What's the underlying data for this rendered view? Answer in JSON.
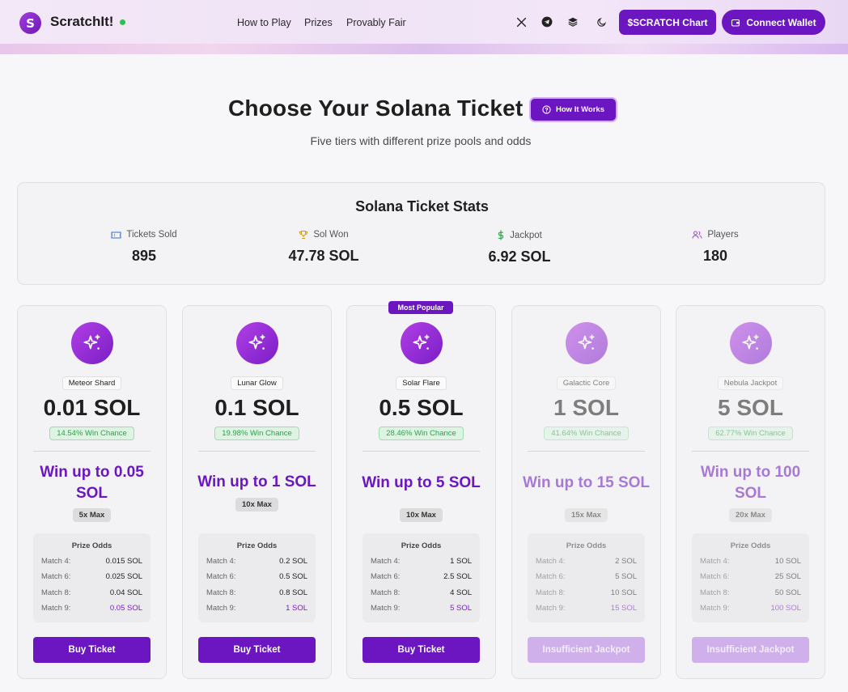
{
  "header": {
    "logo_letter": "S",
    "brand": "ScratchIt!",
    "nav": [
      "How to Play",
      "Prizes",
      "Provably Fair"
    ],
    "icons": [
      "x-icon",
      "telegram-icon",
      "layers-icon",
      "moon-icon"
    ],
    "chart_button": "$SCRATCH Chart",
    "wallet_button": "Connect Wallet"
  },
  "hero": {
    "title": "Choose Your Solana Ticket",
    "how_button": "How It Works",
    "subtitle": "Five tiers with different prize pools and odds"
  },
  "stats": {
    "title": "Solana Ticket Stats",
    "items": [
      {
        "label": "Tickets Sold",
        "value": "895",
        "icon": "ticket-icon",
        "color": "#3b6fd4"
      },
      {
        "label": "Sol Won",
        "value": "47.78 SOL",
        "icon": "trophy-icon",
        "color": "#d39a12"
      },
      {
        "label": "Jackpot",
        "value": "6.92 SOL",
        "icon": "dollar-icon",
        "color": "#2fa84f"
      },
      {
        "label": "Players",
        "value": "180",
        "icon": "users-icon",
        "color": "#9b4fd6"
      }
    ]
  },
  "popular_badge": "Most Popular",
  "odds_title": "Prize Odds",
  "cards": [
    {
      "name": "Meteor Shard",
      "price": "0.01 SOL",
      "chance": "14.54% Win Chance",
      "win": "Win up to 0.05 SOL",
      "max": "5x Max",
      "odds": [
        [
          "Match 4:",
          "0.015 SOL"
        ],
        [
          "Match 6:",
          "0.025 SOL"
        ],
        [
          "Match 8:",
          "0.04 SOL"
        ],
        [
          "Match 9:",
          "0.05 SOL"
        ]
      ],
      "button": "Buy Ticket"
    },
    {
      "name": "Lunar Glow",
      "price": "0.1 SOL",
      "chance": "19.98% Win Chance",
      "win": "Win up to 1 SOL",
      "max": "10x Max",
      "odds": [
        [
          "Match 4:",
          "0.2 SOL"
        ],
        [
          "Match 6:",
          "0.5 SOL"
        ],
        [
          "Match 8:",
          "0.8 SOL"
        ],
        [
          "Match 9:",
          "1 SOL"
        ]
      ],
      "button": "Buy Ticket"
    },
    {
      "name": "Solar Flare",
      "price": "0.5 SOL",
      "chance": "28.46% Win Chance",
      "win": "Win up to 5 SOL",
      "max": "10x Max",
      "odds": [
        [
          "Match 4:",
          "1 SOL"
        ],
        [
          "Match 6:",
          "2.5 SOL"
        ],
        [
          "Match 8:",
          "4 SOL"
        ],
        [
          "Match 9:",
          "5 SOL"
        ]
      ],
      "button": "Buy Ticket"
    },
    {
      "name": "Galactic Core",
      "price": "1 SOL",
      "chance": "41.64% Win Chance",
      "win": "Win up to 15 SOL",
      "max": "15x Max",
      "odds": [
        [
          "Match 4:",
          "2 SOL"
        ],
        [
          "Match 6:",
          "5 SOL"
        ],
        [
          "Match 8:",
          "10 SOL"
        ],
        [
          "Match 9:",
          "15 SOL"
        ]
      ],
      "button": "Insufficient Jackpot"
    },
    {
      "name": "Nebula Jackpot",
      "price": "5 SOL",
      "chance": "62.77% Win Chance",
      "win": "Win up to 100 SOL",
      "max": "20x Max",
      "odds": [
        [
          "Match 4:",
          "10 SOL"
        ],
        [
          "Match 6:",
          "25 SOL"
        ],
        [
          "Match 8:",
          "50 SOL"
        ],
        [
          "Match 9:",
          "100 SOL"
        ]
      ],
      "button": "Insufficient Jackpot"
    }
  ]
}
